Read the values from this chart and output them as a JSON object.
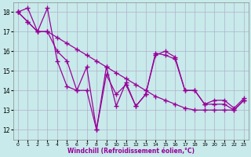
{
  "xlabel": "Windchill (Refroidissement éolien,°C)",
  "background_color": "#c8eaea",
  "grid_color": "#b0b0cc",
  "line_color": "#990099",
  "xlim": [
    -0.5,
    23.5
  ],
  "ylim": [
    11.5,
    18.5
  ],
  "xticks": [
    0,
    1,
    2,
    3,
    4,
    5,
    6,
    7,
    8,
    9,
    10,
    11,
    12,
    13,
    14,
    15,
    16,
    17,
    18,
    19,
    20,
    21,
    22,
    23
  ],
  "yticks": [
    12,
    13,
    14,
    15,
    16,
    17,
    18
  ],
  "line1_y": [
    18.0,
    17.5,
    17.0,
    17.0,
    16.7,
    16.4,
    16.1,
    15.8,
    15.5,
    15.2,
    14.9,
    14.6,
    14.3,
    14.0,
    13.7,
    13.5,
    13.3,
    13.1,
    13.0,
    13.0,
    13.0,
    13.0,
    13.0,
    13.5
  ],
  "line2_y": [
    18.0,
    17.5,
    17.0,
    17.0,
    16.0,
    15.5,
    14.0,
    14.0,
    12.0,
    15.2,
    13.2,
    14.4,
    13.2,
    13.8,
    15.8,
    16.0,
    15.7,
    14.0,
    14.0,
    13.3,
    13.3,
    13.3,
    13.0,
    13.5
  ],
  "line3_y": [
    18.0,
    18.2,
    17.0,
    18.2,
    15.5,
    14.2,
    14.0,
    15.2,
    12.0,
    14.8,
    13.8,
    14.3,
    13.2,
    13.8,
    15.9,
    15.8,
    15.6,
    14.0,
    14.0,
    13.3,
    13.5,
    13.5,
    13.1,
    13.6
  ],
  "marker": "+",
  "markersize": 4,
  "linewidth": 0.9
}
